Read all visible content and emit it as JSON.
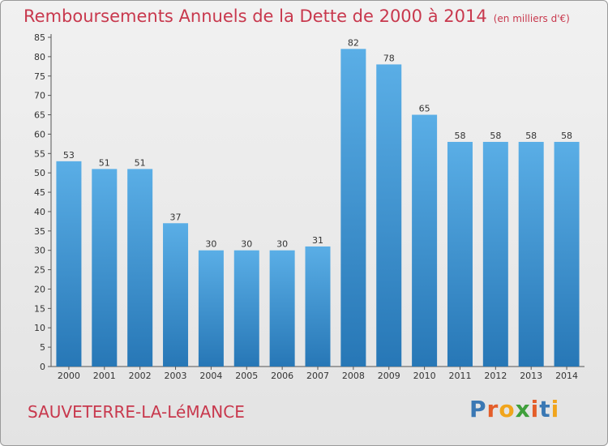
{
  "header": {
    "title": "Remboursements Annuels de la Dette de 2000 à 2014",
    "unit": "(en milliers d'€)"
  },
  "footer": {
    "city": "SAUVETERRE-LA-LéMANCE",
    "brand": "Proxiti"
  },
  "colors": {
    "title": "#c8384d",
    "bar_top": "#5aaee6",
    "bar_bottom": "#2777b6",
    "brand_letters": [
      "#3a78b4",
      "#e45e2a",
      "#f1a51c",
      "#3f9f3b",
      "#e45e2a",
      "#3a78b4",
      "#f1a51c"
    ]
  },
  "chart_data": {
    "type": "bar",
    "title": "Remboursements Annuels de la Dette de 2000 à 2014",
    "xlabel": "",
    "ylabel": "en milliers d'€",
    "categories": [
      "2000",
      "2001",
      "2002",
      "2003",
      "2004",
      "2005",
      "2006",
      "2007",
      "2008",
      "2009",
      "2010",
      "2011",
      "2012",
      "2013",
      "2014"
    ],
    "values": [
      53,
      51,
      51,
      37,
      30,
      30,
      30,
      31,
      82,
      78,
      65,
      58,
      58,
      58,
      58
    ],
    "ylim": [
      0,
      85
    ],
    "yticks": [
      0,
      5,
      10,
      15,
      20,
      25,
      30,
      35,
      40,
      45,
      50,
      55,
      60,
      65,
      70,
      75,
      80,
      85
    ],
    "grid": false
  }
}
